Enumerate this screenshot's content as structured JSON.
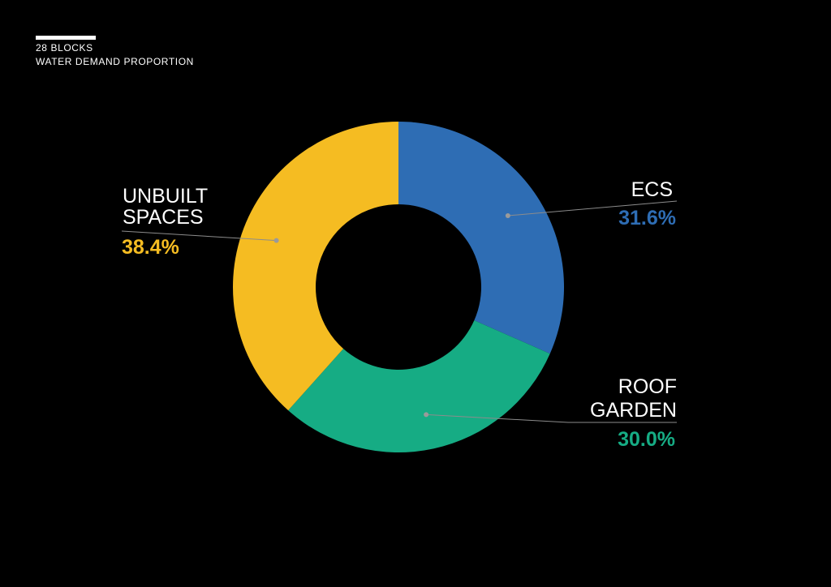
{
  "header": {
    "line1": "28 BLOCKS",
    "line2": "WATER DEMAND PROPORTION"
  },
  "chart_data": {
    "type": "pie",
    "donut": true,
    "start_angle_deg": 0,
    "direction": "clockwise",
    "slices": [
      {
        "key": "ecs",
        "label_lines": [
          "ECS"
        ],
        "value": 31.6,
        "value_label": "31.6%",
        "color": "#2E6DB4"
      },
      {
        "key": "roof-garden",
        "label_lines": [
          "ROOF",
          "GARDEN"
        ],
        "value": 30.0,
        "value_label": "30.0%",
        "color": "#16AC84"
      },
      {
        "key": "unbuilt-spaces",
        "label_lines": [
          "UNBUILT",
          "SPACES"
        ],
        "value": 38.4,
        "value_label": "38.4%",
        "color": "#F5BC22"
      }
    ]
  },
  "colors": {
    "background": "#000000",
    "leader": "#8C8C8C",
    "text": "#FFFFFF"
  }
}
